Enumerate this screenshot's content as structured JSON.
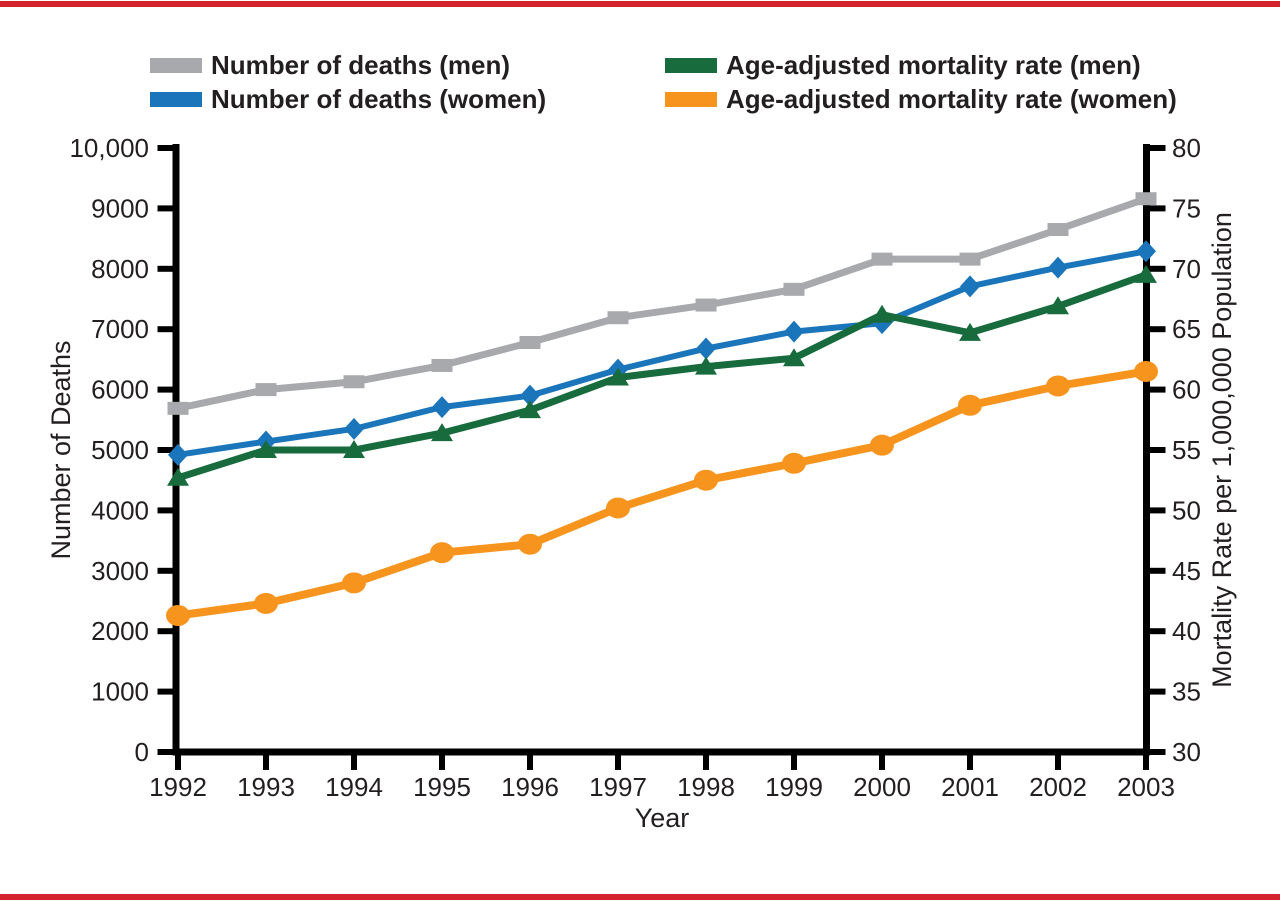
{
  "page": {
    "accent_color": "#d2232e",
    "background": "#ffffff"
  },
  "chart_data": {
    "type": "line",
    "x": [
      1992,
      1993,
      1994,
      1995,
      1996,
      1997,
      1998,
      1999,
      2000,
      2001,
      2002,
      2003
    ],
    "series": [
      {
        "name": "Number of deaths (men)",
        "axis": "left",
        "marker": "square",
        "color": "#a7a9ac",
        "stroke_width": 7,
        "values": [
          5690,
          6000,
          6130,
          6400,
          6780,
          7190,
          7400,
          7660,
          8160,
          8160,
          8650,
          9160
        ]
      },
      {
        "name": "Number of deaths (women)",
        "axis": "left",
        "marker": "diamond",
        "color": "#1b75bb",
        "stroke_width": 6,
        "values": [
          4920,
          5140,
          5350,
          5710,
          5900,
          6330,
          6680,
          6960,
          7100,
          7710,
          8020,
          8290
        ]
      },
      {
        "name": "Age-adjusted mortality rate (men)",
        "axis": "right",
        "marker": "triangle",
        "color": "#176b3d",
        "stroke_width": 7,
        "values": [
          52.7,
          55.0,
          55.0,
          56.4,
          58.3,
          61.0,
          61.9,
          62.6,
          66.2,
          64.7,
          66.9,
          69.5
        ]
      },
      {
        "name": "Age-adjusted mortality rate (women)",
        "axis": "right",
        "marker": "circle",
        "color": "#f7941e",
        "stroke_width": 8,
        "values": [
          41.3,
          42.3,
          44.0,
          46.5,
          47.2,
          50.2,
          52.5,
          53.9,
          55.4,
          58.7,
          60.3,
          61.5
        ]
      }
    ],
    "left_axis": {
      "label": "Number of Deaths",
      "min": 0,
      "max": 10000,
      "tick_values": [
        0,
        1000,
        2000,
        3000,
        4000,
        5000,
        6000,
        7000,
        8000,
        9000,
        10000
      ],
      "tick_labels": [
        "0",
        "1000",
        "2000",
        "3000",
        "4000",
        "5000",
        "6000",
        "7000",
        "8000",
        "9000",
        "10,000"
      ]
    },
    "right_axis": {
      "label": "Mortality Rate per 1,000,000 Population",
      "min": 30,
      "max": 80,
      "tick_values": [
        30,
        35,
        40,
        45,
        50,
        55,
        60,
        65,
        70,
        75,
        80
      ],
      "tick_labels": [
        "30",
        "35",
        "40",
        "45",
        "50",
        "55",
        "60",
        "65",
        "70",
        "75",
        "80"
      ]
    },
    "x_axis": {
      "label": "Year",
      "tick_labels": [
        "1992",
        "1993",
        "1994",
        "1995",
        "1996",
        "1997",
        "1998",
        "1999",
        "2000",
        "2001",
        "2002",
        "2003"
      ]
    },
    "legend_position": "top",
    "grid": false
  }
}
